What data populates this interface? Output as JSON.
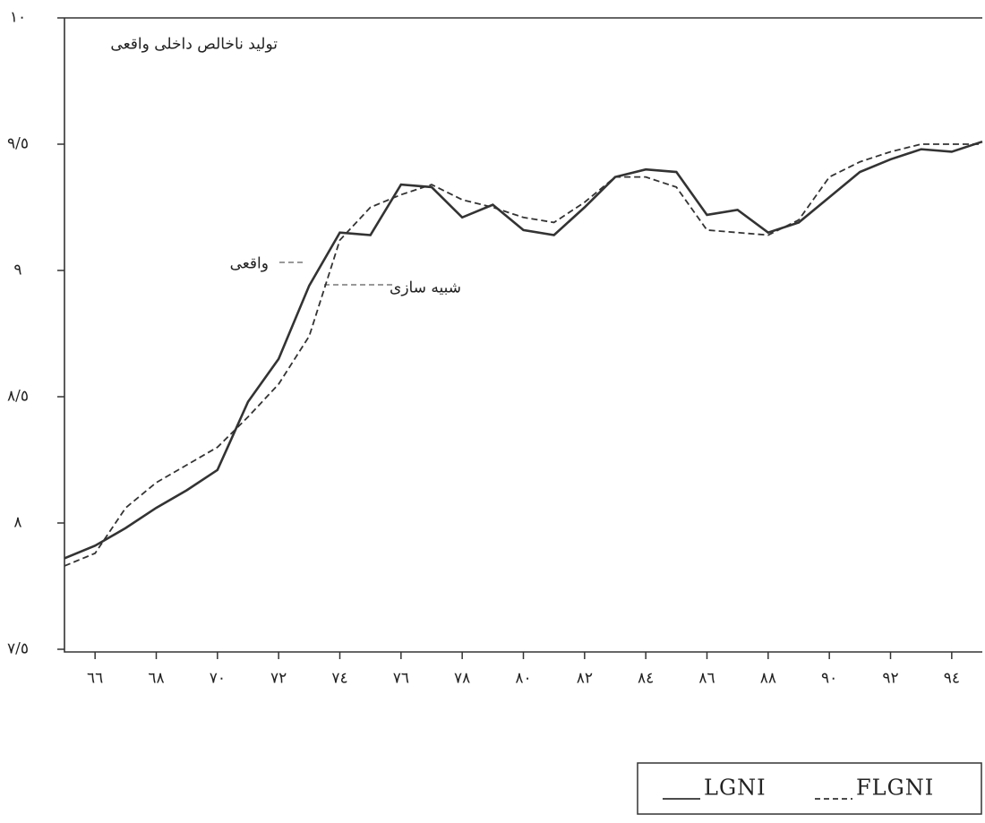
{
  "chart_data": {
    "type": "line",
    "title": "تولید ناخالص داخلی واقعی",
    "annotations": [
      "واقعی",
      "شبیه سازی"
    ],
    "x": [
      65,
      66,
      67,
      68,
      69,
      70,
      71,
      72,
      73,
      74,
      75,
      76,
      77,
      78,
      79,
      80,
      81,
      82,
      83,
      84,
      85,
      86,
      87,
      88,
      89,
      90,
      91,
      92,
      93,
      94,
      95
    ],
    "series": [
      {
        "name": "LGNI",
        "color": "#333333",
        "style": "solid",
        "values": [
          7.86,
          7.91,
          7.98,
          8.06,
          8.13,
          8.21,
          8.48,
          8.65,
          8.94,
          9.15,
          9.14,
          9.34,
          9.33,
          9.21,
          9.26,
          9.16,
          9.14,
          9.25,
          9.37,
          9.4,
          9.39,
          9.22,
          9.24,
          9.15,
          9.19,
          9.29,
          9.39,
          9.44,
          9.48,
          9.47,
          9.51
        ]
      },
      {
        "name": "FLGNI",
        "color": "#333333",
        "style": "dashed",
        "values": [
          7.83,
          7.88,
          8.06,
          8.16,
          8.23,
          8.3,
          8.42,
          8.55,
          8.74,
          9.12,
          9.25,
          9.3,
          9.34,
          9.28,
          9.25,
          9.21,
          9.19,
          9.27,
          9.37,
          9.37,
          9.33,
          9.16,
          9.15,
          9.14,
          9.2,
          9.37,
          9.43,
          9.47,
          9.5,
          9.5,
          9.5
        ]
      }
    ],
    "xlim": [
      65,
      95
    ],
    "ylim": [
      7.5,
      10
    ],
    "xticks": [
      {
        "value": 66,
        "label": "٦٦"
      },
      {
        "value": 68,
        "label": "٦٨"
      },
      {
        "value": 70,
        "label": "٧٠"
      },
      {
        "value": 72,
        "label": "٧٢"
      },
      {
        "value": 74,
        "label": "٧٤"
      },
      {
        "value": 76,
        "label": "٧٦"
      },
      {
        "value": 78,
        "label": "٧٨"
      },
      {
        "value": 80,
        "label": "٨٠"
      },
      {
        "value": 82,
        "label": "٨٢"
      },
      {
        "value": 84,
        "label": "٨٤"
      },
      {
        "value": 86,
        "label": "٨٦"
      },
      {
        "value": 88,
        "label": "٨٨"
      },
      {
        "value": 90,
        "label": "٩٠"
      },
      {
        "value": 92,
        "label": "٩٢"
      },
      {
        "value": 94,
        "label": "٩٤"
      }
    ],
    "yticks": [
      {
        "value": 7.5,
        "label": "٧/٥"
      },
      {
        "value": 8,
        "label": "٨"
      },
      {
        "value": 8.5,
        "label": "٨/٥"
      },
      {
        "value": 9,
        "label": "٩"
      },
      {
        "value": 9.5,
        "label": "٩/٥"
      },
      {
        "value": 10,
        "label": "١٠"
      }
    ],
    "legend": "bottom-right"
  }
}
